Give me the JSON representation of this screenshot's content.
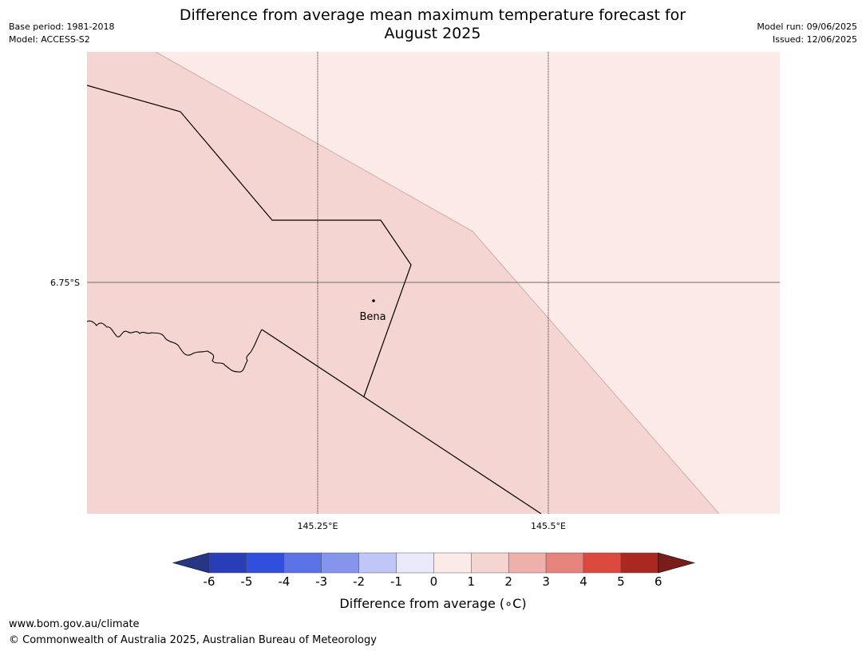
{
  "title_line1": "Difference from average mean maximum temperature forecast for",
  "title_line2": "August 2025",
  "meta": {
    "base_period": "Base period: 1981-2018",
    "model": "Model: ACCESS-S2",
    "model_run": "Model run: 09/06/2025",
    "issued": "Issued: 12/06/2025"
  },
  "map": {
    "place_label": "Bena",
    "lat_tick": "6.75°S",
    "lon_ticks": [
      "145.25°E",
      "145.5°E"
    ],
    "fill_colors": {
      "one_to_two": "#f5d5d2",
      "zero_to_one": "#fbeae8"
    }
  },
  "colorbar": {
    "title": "Difference from average (∘C)",
    "labels": [
      "-6",
      "-5",
      "-4",
      "-3",
      "-2",
      "-1",
      "0",
      "1",
      "2",
      "3",
      "4",
      "5",
      "6"
    ],
    "colors": [
      "#263584",
      "#2a3db8",
      "#2f4fdc",
      "#5b72e6",
      "#8695ec",
      "#c0c6f5",
      "#e8eafc",
      "#fbeae8",
      "#f5d5d2",
      "#efafaa",
      "#e5837c",
      "#dc4a3e",
      "#aa2820",
      "#7a1d19"
    ]
  },
  "footer": {
    "url": "www.bom.gov.au/climate",
    "copyright": "© Commonwealth of Australia 2025, Australian Bureau of Meteorology"
  }
}
